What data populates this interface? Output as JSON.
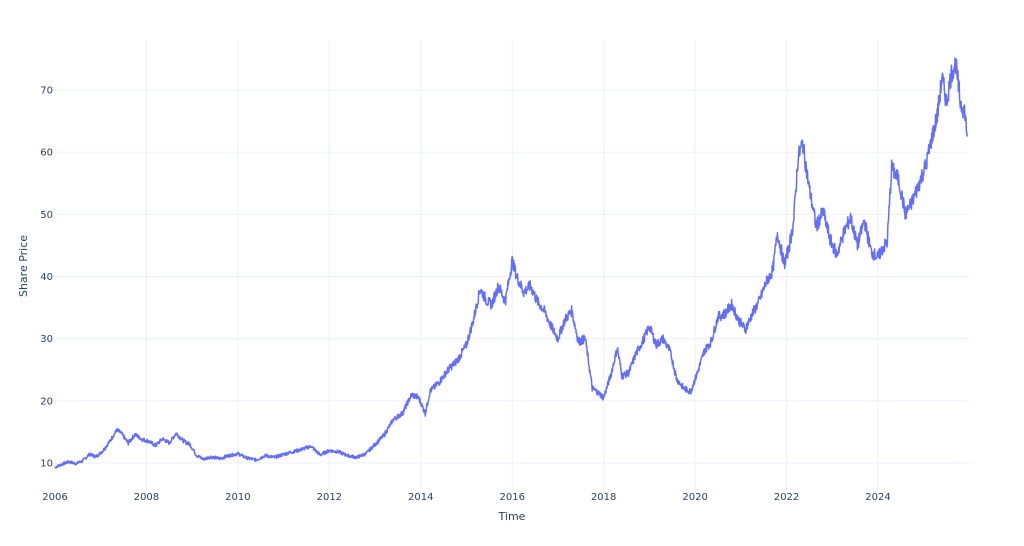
{
  "chart_data": {
    "type": "line",
    "title": "",
    "xlabel": "Time",
    "ylabel": "Share Price",
    "xlim": [
      2006.0,
      2025.95
    ],
    "ylim": [
      6.2,
      78.0
    ],
    "grid": true,
    "legend": null,
    "line_color": "#636efa",
    "x_ticks": [
      2006,
      2008,
      2010,
      2012,
      2014,
      2016,
      2018,
      2020,
      2022,
      2024
    ],
    "y_ticks": [
      10,
      20,
      30,
      40,
      50,
      60,
      70
    ],
    "series": [
      {
        "name": "Share Price",
        "x": [
          2006.0,
          2006.15,
          2006.3,
          2006.45,
          2006.6,
          2006.75,
          2006.9,
          2007.05,
          2007.2,
          2007.35,
          2007.45,
          2007.6,
          2007.75,
          2007.9,
          2008.05,
          2008.2,
          2008.35,
          2008.5,
          2008.65,
          2008.8,
          2008.95,
          2009.1,
          2009.25,
          2009.4,
          2009.6,
          2009.8,
          2010.0,
          2010.2,
          2010.4,
          2010.6,
          2010.8,
          2011.0,
          2011.2,
          2011.4,
          2011.6,
          2011.8,
          2012.0,
          2012.2,
          2012.4,
          2012.6,
          2012.8,
          2013.0,
          2013.2,
          2013.4,
          2013.6,
          2013.8,
          2013.95,
          2014.1,
          2014.2,
          2014.4,
          2014.6,
          2014.8,
          2015.0,
          2015.15,
          2015.3,
          2015.45,
          2015.55,
          2015.7,
          2015.85,
          2016.0,
          2016.1,
          2016.25,
          2016.4,
          2016.55,
          2016.7,
          2016.85,
          2017.0,
          2017.15,
          2017.3,
          2017.45,
          2017.6,
          2017.75,
          2017.85,
          2018.0,
          2018.15,
          2018.3,
          2018.4,
          2018.55,
          2018.7,
          2018.85,
          2019.0,
          2019.15,
          2019.3,
          2019.45,
          2019.6,
          2019.75,
          2019.9,
          2020.05,
          2020.2,
          2020.35,
          2020.5,
          2020.65,
          2020.8,
          2020.95,
          2021.1,
          2021.25,
          2021.4,
          2021.55,
          2021.7,
          2021.8,
          2021.95,
          2022.05,
          2022.15,
          2022.25,
          2022.35,
          2022.5,
          2022.65,
          2022.8,
          2022.95,
          2023.1,
          2023.25,
          2023.4,
          2023.55,
          2023.7,
          2023.85,
          2024.0,
          2024.1,
          2024.2,
          2024.3,
          2024.45,
          2024.6,
          2024.75,
          2024.9,
          2025.05,
          2025.2,
          2025.3,
          2025.4,
          2025.5,
          2025.6,
          2025.7,
          2025.8,
          2025.9,
          2025.95
        ],
        "values": [
          9.3,
          9.8,
          10.2,
          9.9,
          10.3,
          11.4,
          11.0,
          12.0,
          13.5,
          15.3,
          14.8,
          13.2,
          14.6,
          13.8,
          13.5,
          12.8,
          13.9,
          13.2,
          14.8,
          13.6,
          13.0,
          11.2,
          10.6,
          11.0,
          10.7,
          11.2,
          11.5,
          10.8,
          10.5,
          11.2,
          10.9,
          11.4,
          11.8,
          12.2,
          12.7,
          11.3,
          12.0,
          11.8,
          11.2,
          10.9,
          11.5,
          13.0,
          14.5,
          17.0,
          18.0,
          21.0,
          20.5,
          18.0,
          21.5,
          23.0,
          25.0,
          26.5,
          29.0,
          33.0,
          38.0,
          36.0,
          35.5,
          38.5,
          36.0,
          42.5,
          40.0,
          37.5,
          38.5,
          36.0,
          34.5,
          32.0,
          30.0,
          33.0,
          34.5,
          29.5,
          30.0,
          22.0,
          21.5,
          20.5,
          24.0,
          28.5,
          24.0,
          24.5,
          27.5,
          29.5,
          32.0,
          29.0,
          30.0,
          28.0,
          23.5,
          22.0,
          21.5,
          24.5,
          28.0,
          29.5,
          33.5,
          34.0,
          35.5,
          33.0,
          31.5,
          34.0,
          36.0,
          39.0,
          41.0,
          47.0,
          42.0,
          44.5,
          48.5,
          59.0,
          61.5,
          54.0,
          48.0,
          50.5,
          46.0,
          43.5,
          47.0,
          49.5,
          45.0,
          49.0,
          44.0,
          43.0,
          44.5,
          45.5,
          57.5,
          55.5,
          50.0,
          52.0,
          55.0,
          58.0,
          63.0,
          66.0,
          72.0,
          68.0,
          72.5,
          74.3,
          68.0,
          66.5,
          62.5
        ]
      }
    ]
  }
}
